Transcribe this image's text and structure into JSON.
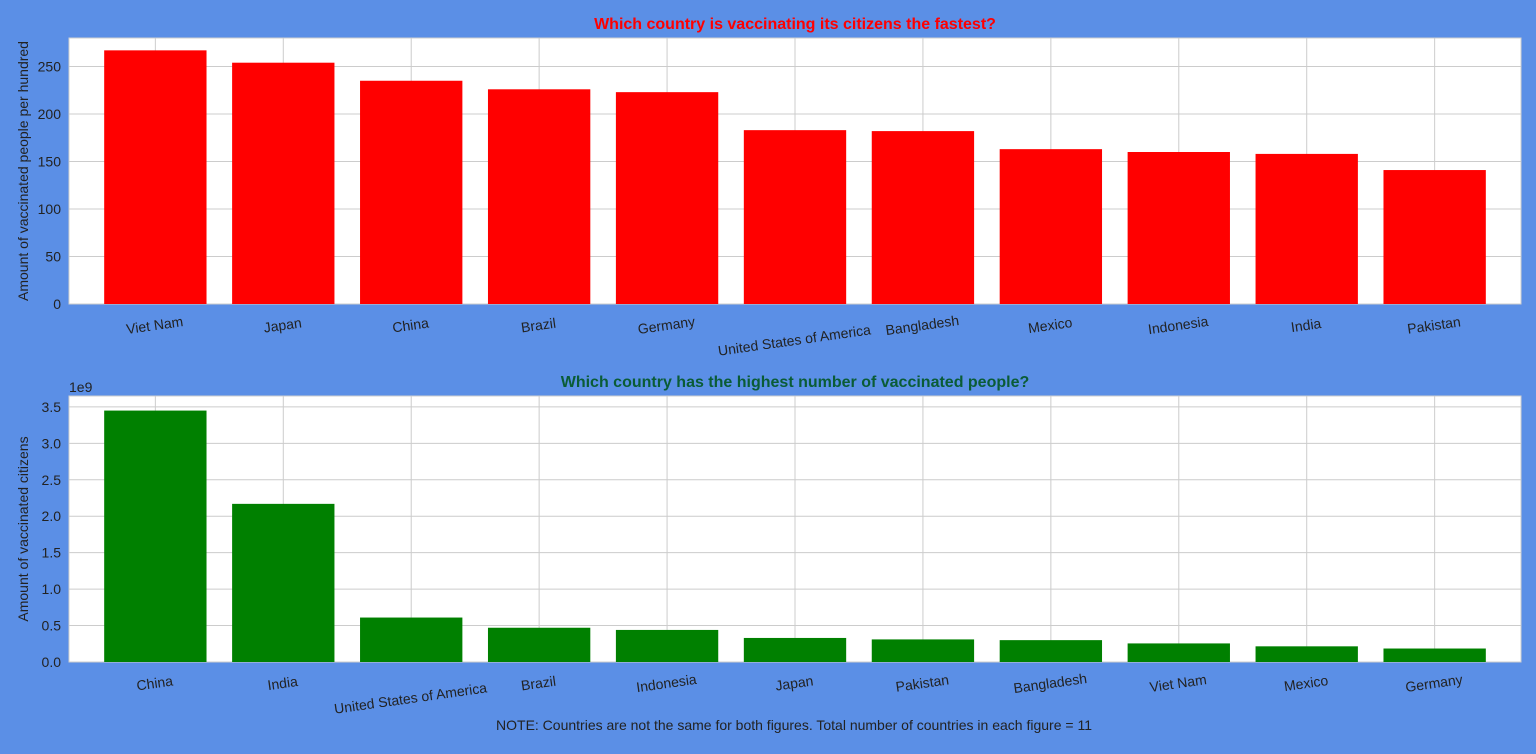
{
  "note": "NOTE: Countries are not the same for both figures. Total number of countries in each figure = 11",
  "chart_data": [
    {
      "type": "bar",
      "title": "Which country is vaccinating its citizens the fastest?",
      "title_color": "#ff0000",
      "bar_color": "#ff0000",
      "xlabel": "",
      "ylabel": "Amount of vaccinated people per hundred",
      "categories": [
        "Viet Nam",
        "Japan",
        "China",
        "Brazil",
        "Germany",
        "United States of America",
        "Bangladesh",
        "Mexico",
        "Indonesia",
        "India",
        "Pakistan"
      ],
      "values": [
        267,
        254,
        235,
        226,
        223,
        183,
        182,
        163,
        160,
        158,
        141
      ],
      "ylim": [
        0,
        280
      ],
      "yticks": [
        0,
        50,
        100,
        150,
        200,
        250
      ],
      "ytick_labels": [
        "0",
        "50",
        "100",
        "150",
        "200",
        "250"
      ],
      "grid": true
    },
    {
      "type": "bar",
      "title": "Which country has the highest number of vaccinated people?",
      "title_color": "#0a5c36",
      "bar_color": "#008000",
      "xlabel": "",
      "ylabel": "Amount of vaccinated citizens",
      "offset_label": "1e9",
      "categories": [
        "China",
        "India",
        "United States of America",
        "Brazil",
        "Indonesia",
        "Japan",
        "Pakistan",
        "Bangladesh",
        "Viet Nam",
        "Mexico",
        "Germany"
      ],
      "values": [
        3450000000,
        2170000000,
        610000000,
        470000000,
        440000000,
        330000000,
        310000000,
        300000000,
        255000000,
        215000000,
        185000000
      ],
      "ylim": [
        0,
        3650000000
      ],
      "yticks": [
        0,
        500000000,
        1000000000,
        1500000000,
        2000000000,
        2500000000,
        3000000000,
        3500000000
      ],
      "ytick_labels": [
        "0.0",
        "0.5",
        "1.0",
        "1.5",
        "2.0",
        "2.5",
        "3.0",
        "3.5"
      ],
      "grid": true
    }
  ]
}
